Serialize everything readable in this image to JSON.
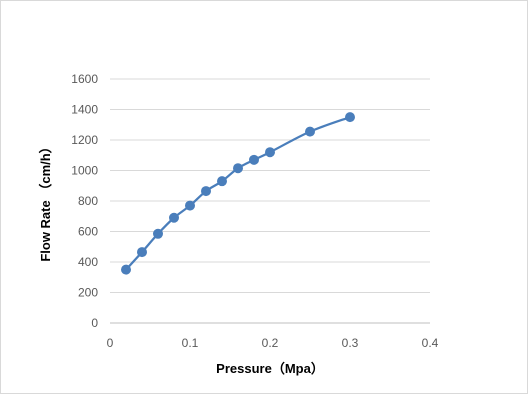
{
  "chart_data": {
    "type": "scatter",
    "title": "",
    "xlabel": "Pressure（Mpa）",
    "ylabel": "Flow Rate （cm/h）",
    "xlim": [
      0,
      0.4
    ],
    "ylim": [
      0,
      1600
    ],
    "x_ticks": [
      "0",
      "0.1",
      "0.2",
      "0.3",
      "0.4"
    ],
    "x_tick_values": [
      0,
      0.1,
      0.2,
      0.3,
      0.4
    ],
    "y_ticks": [
      "0",
      "200",
      "400",
      "600",
      "800",
      "1000",
      "1200",
      "1400",
      "1600"
    ],
    "y_tick_values": [
      0,
      200,
      400,
      600,
      800,
      1000,
      1200,
      1400,
      1600
    ],
    "grid": "horizontal major gridlines",
    "legend": "none",
    "series": [
      {
        "style": "smooth line with circle markers",
        "color": "#4a7ebb",
        "x": [
          0.02,
          0.04,
          0.06,
          0.08,
          0.1,
          0.12,
          0.14,
          0.16,
          0.18,
          0.2,
          0.25,
          0.3
        ],
        "y": [
          350,
          465,
          585,
          690,
          770,
          865,
          930,
          1015,
          1070,
          1120,
          1255,
          1350
        ]
      }
    ]
  }
}
